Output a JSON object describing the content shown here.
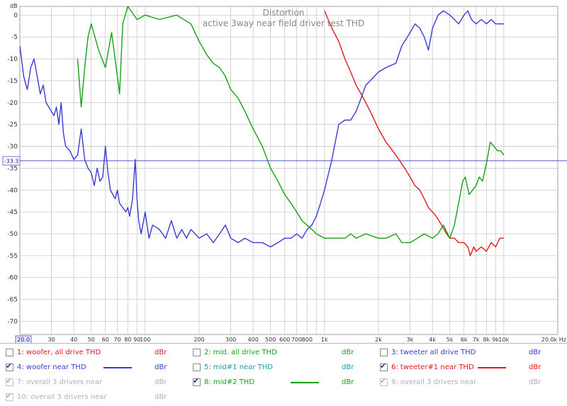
{
  "colors": {
    "woofer": "#3b3bd4",
    "mid": "#18a018",
    "tweeter": "#e41818",
    "grid": "#c8c8c8",
    "axis_text": "#333333",
    "ref_line": "#5050c8",
    "title": "#888888",
    "disabled": "#b0b0b0"
  },
  "chart_data": {
    "type": "line",
    "title": "Distortion",
    "subtitle": "active 3way near field driver test THD",
    "ylabel": "dB",
    "xunit": "Hz",
    "x_scale": "log",
    "xlim": [
      20,
      20000
    ],
    "ylim": [
      -73,
      2
    ],
    "grid": true,
    "reference_line": {
      "y": -33.3,
      "label": "-33.3"
    },
    "x_left_label": "20.0",
    "x_right_label": "20.0k Hz",
    "y_ticks": [
      "0",
      "-5",
      "-10",
      "-15",
      "-20",
      "-25",
      "-30",
      "-35",
      "-40",
      "-45",
      "-50",
      "-55",
      "-60",
      "-65",
      "-70"
    ],
    "y_tick_values": [
      0,
      -5,
      -10,
      -15,
      -20,
      -25,
      -30,
      -35,
      -40,
      -45,
      -50,
      -55,
      -60,
      -65,
      -70
    ],
    "x_ticks": [
      {
        "f": 30,
        "label": "30"
      },
      {
        "f": 40,
        "label": "40"
      },
      {
        "f": 50,
        "label": "50"
      },
      {
        "f": 60,
        "label": "60"
      },
      {
        "f": 70,
        "label": "70"
      },
      {
        "f": 80,
        "label": "80"
      },
      {
        "f": 90,
        "label": "90"
      },
      {
        "f": 100,
        "label": "100"
      },
      {
        "f": 200,
        "label": "200"
      },
      {
        "f": 300,
        "label": "300"
      },
      {
        "f": 400,
        "label": "400"
      },
      {
        "f": 500,
        "label": "500"
      },
      {
        "f": 600,
        "label": "600"
      },
      {
        "f": 700,
        "label": "700"
      },
      {
        "f": 800,
        "label": "800"
      },
      {
        "f": 1000,
        "label": "1k"
      },
      {
        "f": 2000,
        "label": "2k"
      },
      {
        "f": 3000,
        "label": "3k"
      },
      {
        "f": 4000,
        "label": "4k"
      },
      {
        "f": 5000,
        "label": "5k"
      },
      {
        "f": 6000,
        "label": "6k"
      },
      {
        "f": 7000,
        "label": "7k"
      },
      {
        "f": 8000,
        "label": "8k"
      },
      {
        "f": 9000,
        "label": "9k"
      },
      {
        "f": 10000,
        "label": "10k"
      }
    ],
    "x_minor": [
      900
    ],
    "series": [
      {
        "name": "woofer near THD",
        "color": "#3b3bd4",
        "points": [
          [
            20,
            -7
          ],
          [
            21,
            -14
          ],
          [
            22,
            -17
          ],
          [
            23,
            -12
          ],
          [
            24,
            -10
          ],
          [
            25,
            -14
          ],
          [
            26,
            -18
          ],
          [
            27,
            -16
          ],
          [
            28,
            -20
          ],
          [
            30,
            -22
          ],
          [
            31,
            -23
          ],
          [
            32,
            -21
          ],
          [
            33,
            -25
          ],
          [
            34,
            -20
          ],
          [
            35,
            -27
          ],
          [
            36,
            -30
          ],
          [
            38,
            -31
          ],
          [
            40,
            -33
          ],
          [
            42,
            -32
          ],
          [
            44,
            -26
          ],
          [
            46,
            -33
          ],
          [
            48,
            -35
          ],
          [
            50,
            -36
          ],
          [
            52,
            -39
          ],
          [
            54,
            -35
          ],
          [
            56,
            -38
          ],
          [
            58,
            -37
          ],
          [
            60,
            -30
          ],
          [
            62,
            -36
          ],
          [
            64,
            -40
          ],
          [
            66,
            -41
          ],
          [
            68,
            -42
          ],
          [
            70,
            -40
          ],
          [
            72,
            -43
          ],
          [
            75,
            -44
          ],
          [
            78,
            -45
          ],
          [
            80,
            -44
          ],
          [
            82,
            -46
          ],
          [
            85,
            -42
          ],
          [
            88,
            -33
          ],
          [
            90,
            -42
          ],
          [
            92,
            -47
          ],
          [
            95,
            -50
          ],
          [
            98,
            -47
          ],
          [
            100,
            -45
          ],
          [
            105,
            -51
          ],
          [
            110,
            -48
          ],
          [
            120,
            -49
          ],
          [
            130,
            -51
          ],
          [
            140,
            -47
          ],
          [
            150,
            -51
          ],
          [
            160,
            -49
          ],
          [
            170,
            -51
          ],
          [
            180,
            -49
          ],
          [
            200,
            -51
          ],
          [
            220,
            -50
          ],
          [
            240,
            -52
          ],
          [
            260,
            -50
          ],
          [
            280,
            -48
          ],
          [
            300,
            -51
          ],
          [
            330,
            -52
          ],
          [
            360,
            -51
          ],
          [
            400,
            -52
          ],
          [
            450,
            -52
          ],
          [
            500,
            -53
          ],
          [
            550,
            -52
          ],
          [
            600,
            -51
          ],
          [
            650,
            -51
          ],
          [
            700,
            -50
          ],
          [
            750,
            -51
          ],
          [
            800,
            -49
          ],
          [
            850,
            -48
          ],
          [
            900,
            -46
          ],
          [
            950,
            -43
          ],
          [
            1000,
            -40
          ],
          [
            1100,
            -33
          ],
          [
            1200,
            -25
          ],
          [
            1300,
            -24
          ],
          [
            1400,
            -24
          ],
          [
            1500,
            -22
          ],
          [
            1600,
            -19
          ],
          [
            1700,
            -16
          ],
          [
            1800,
            -15
          ],
          [
            2000,
            -13
          ],
          [
            2200,
            -12
          ],
          [
            2500,
            -11
          ],
          [
            2700,
            -7
          ],
          [
            3000,
            -4
          ],
          [
            3200,
            -2
          ],
          [
            3400,
            -3
          ],
          [
            3600,
            -5
          ],
          [
            3800,
            -8
          ],
          [
            4000,
            -3
          ],
          [
            4300,
            0
          ],
          [
            4600,
            1
          ],
          [
            5000,
            0
          ],
          [
            5300,
            -1
          ],
          [
            5600,
            -2
          ],
          [
            6000,
            0
          ],
          [
            6300,
            1
          ],
          [
            6600,
            -1
          ],
          [
            7000,
            -2
          ],
          [
            7500,
            -1
          ],
          [
            8000,
            -2
          ],
          [
            8500,
            -1
          ],
          [
            9000,
            -2
          ],
          [
            10000,
            -2
          ]
        ]
      },
      {
        "name": "tweeter#1 near THD",
        "color": "#e41818",
        "points": [
          [
            1000,
            1
          ],
          [
            1100,
            -3
          ],
          [
            1200,
            -6
          ],
          [
            1300,
            -10
          ],
          [
            1400,
            -13
          ],
          [
            1500,
            -16
          ],
          [
            1600,
            -18
          ],
          [
            1700,
            -20
          ],
          [
            1800,
            -22
          ],
          [
            2000,
            -26
          ],
          [
            2200,
            -29
          ],
          [
            2400,
            -31
          ],
          [
            2600,
            -33
          ],
          [
            2800,
            -35
          ],
          [
            3000,
            -37
          ],
          [
            3200,
            -39
          ],
          [
            3400,
            -40
          ],
          [
            3600,
            -42
          ],
          [
            3800,
            -44
          ],
          [
            4000,
            -45
          ],
          [
            4200,
            -46
          ],
          [
            4500,
            -48
          ],
          [
            4800,
            -50
          ],
          [
            5000,
            -51
          ],
          [
            5300,
            -51
          ],
          [
            5600,
            -52
          ],
          [
            6000,
            -52
          ],
          [
            6300,
            -53
          ],
          [
            6500,
            -55
          ],
          [
            6800,
            -53
          ],
          [
            7000,
            -54
          ],
          [
            7500,
            -53
          ],
          [
            8000,
            -54
          ],
          [
            8500,
            -52
          ],
          [
            9000,
            -53
          ],
          [
            9500,
            -51
          ],
          [
            10000,
            -51
          ]
        ]
      },
      {
        "name": "mid#2 THD",
        "color": "#18a018",
        "points": [
          [
            42,
            -10
          ],
          [
            44,
            -21
          ],
          [
            46,
            -12
          ],
          [
            48,
            -5
          ],
          [
            50,
            -2
          ],
          [
            55,
            -8
          ],
          [
            60,
            -12
          ],
          [
            65,
            -4
          ],
          [
            70,
            -14
          ],
          [
            72,
            -18
          ],
          [
            75,
            -2
          ],
          [
            80,
            2
          ],
          [
            90,
            -1
          ],
          [
            100,
            0
          ],
          [
            120,
            -1
          ],
          [
            150,
            0
          ],
          [
            180,
            -2
          ],
          [
            200,
            -6
          ],
          [
            220,
            -9
          ],
          [
            240,
            -11
          ],
          [
            260,
            -12
          ],
          [
            280,
            -14
          ],
          [
            300,
            -17
          ],
          [
            330,
            -19
          ],
          [
            360,
            -22
          ],
          [
            400,
            -26
          ],
          [
            450,
            -30
          ],
          [
            500,
            -35
          ],
          [
            550,
            -38
          ],
          [
            600,
            -41
          ],
          [
            650,
            -43
          ],
          [
            700,
            -45
          ],
          [
            750,
            -47
          ],
          [
            800,
            -48
          ],
          [
            850,
            -49
          ],
          [
            900,
            -50
          ],
          [
            1000,
            -51
          ],
          [
            1100,
            -51
          ],
          [
            1200,
            -51
          ],
          [
            1300,
            -51
          ],
          [
            1400,
            -50
          ],
          [
            1500,
            -51
          ],
          [
            1700,
            -50
          ],
          [
            2000,
            -51
          ],
          [
            2200,
            -51
          ],
          [
            2500,
            -50
          ],
          [
            2700,
            -52
          ],
          [
            3000,
            -52
          ],
          [
            3300,
            -51
          ],
          [
            3600,
            -50
          ],
          [
            4000,
            -51
          ],
          [
            4300,
            -50
          ],
          [
            4600,
            -48
          ],
          [
            5000,
            -51
          ],
          [
            5300,
            -48
          ],
          [
            5600,
            -43
          ],
          [
            5900,
            -38
          ],
          [
            6100,
            -37
          ],
          [
            6400,
            -41
          ],
          [
            6700,
            -40
          ],
          [
            7000,
            -39
          ],
          [
            7300,
            -37
          ],
          [
            7600,
            -38
          ],
          [
            8000,
            -34
          ],
          [
            8400,
            -29
          ],
          [
            8800,
            -30
          ],
          [
            9200,
            -31
          ],
          [
            9600,
            -31
          ],
          [
            10000,
            -32
          ]
        ]
      }
    ]
  },
  "legend": [
    [
      {
        "label": "1: woofer, all drive THD",
        "unit": "dBr",
        "checked": false,
        "enabled": true,
        "color": "#e41818",
        "line": false
      },
      {
        "label": "2: mid. all drive THD",
        "unit": "dBr",
        "checked": false,
        "enabled": true,
        "color": "#18a018",
        "line": false
      },
      {
        "label": "3: tweeter all drive THD",
        "unit": "dBr",
        "checked": false,
        "enabled": true,
        "color": "#3b3bd4",
        "line": false
      }
    ],
    [
      {
        "label": "4: woofer near THD",
        "unit": "dBr",
        "checked": true,
        "enabled": true,
        "color": "#3b3bd4",
        "line": true
      },
      {
        "label": "5: mid#1 near THD",
        "unit": "dBr",
        "checked": false,
        "enabled": true,
        "color": "#18a0a0",
        "line": false
      },
      {
        "label": "6: tweeter#1 near THD",
        "unit": "dBr",
        "checked": true,
        "enabled": true,
        "color": "#e41818",
        "line": true
      }
    ],
    [
      {
        "label": "7: overall 3 drivers near",
        "unit": "dBr",
        "checked": true,
        "enabled": false,
        "color": "#b0b0b0",
        "line": false
      },
      {
        "label": "8: mid#2 THD",
        "unit": "dBr",
        "checked": true,
        "enabled": true,
        "color": "#18a018",
        "line": true
      },
      {
        "label": "9: overall 3 drivers near",
        "unit": "dBr",
        "checked": true,
        "enabled": false,
        "color": "#b0b0b0",
        "line": false
      }
    ],
    [
      {
        "label": "10: overall 3 drivers near",
        "unit": "dBr",
        "checked": true,
        "enabled": false,
        "color": "#b0b0b0",
        "line": false
      }
    ]
  ]
}
